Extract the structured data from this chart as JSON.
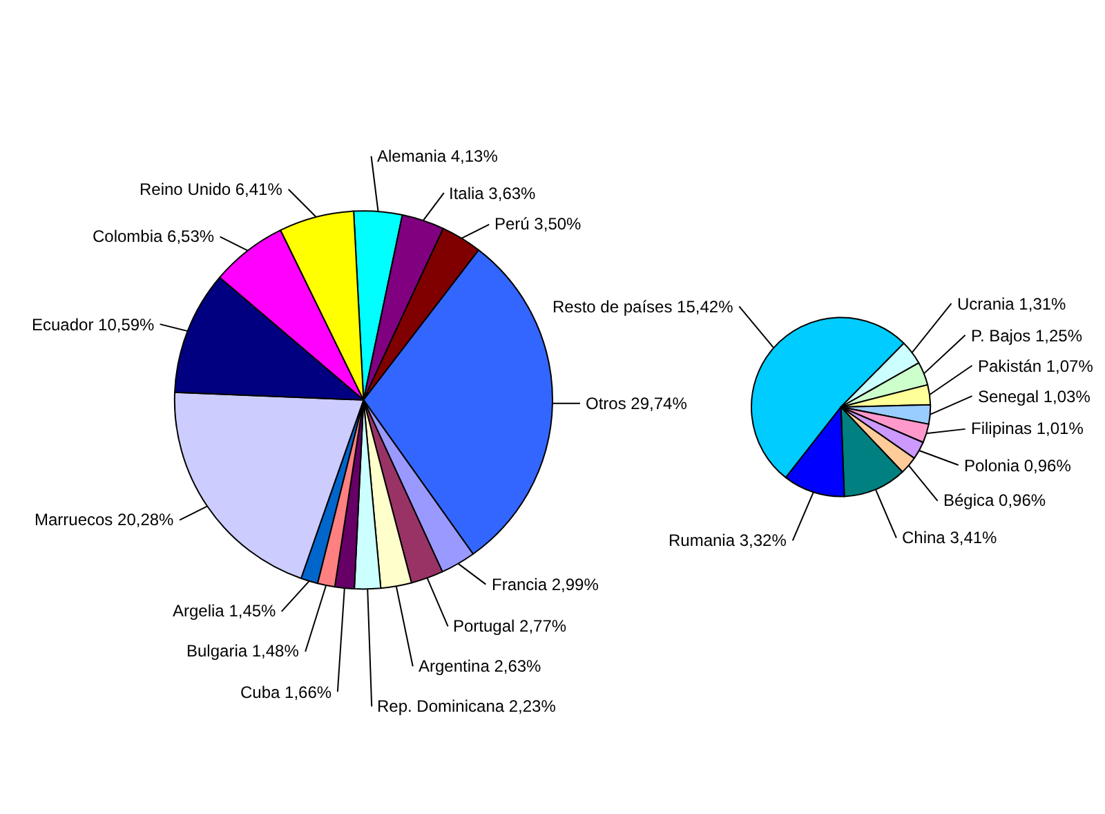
{
  "chart_data": [
    {
      "type": "pie",
      "categories": [
        "Alemania",
        "Italia",
        "Perú",
        "Otros",
        "Francia",
        "Portugal",
        "Argentina",
        "Rep. Dominicana",
        "Cuba",
        "Bulgaria",
        "Argelia",
        "Marruecos",
        "Ecuador",
        "Colombia",
        "Reino Unido"
      ],
      "values": [
        4.13,
        3.63,
        3.5,
        29.74,
        2.99,
        2.77,
        2.63,
        2.23,
        1.66,
        1.48,
        1.45,
        20.28,
        10.59,
        6.53,
        6.41
      ],
      "value_labels": [
        "4,13%",
        "3,63%",
        "3,50%",
        "29,74%",
        "2,99%",
        "2,77%",
        "2,63%",
        "2,23%",
        "1,66%",
        "1,48%",
        "1,45%",
        "20,28%",
        "10,59%",
        "6,53%",
        "6,41%"
      ],
      "colors": [
        "#00ffff",
        "#800080",
        "#800000",
        "#3366ff",
        "#9999ff",
        "#993366",
        "#ffffcc",
        "#ccffff",
        "#660066",
        "#ff8080",
        "#0066cc",
        "#ccccff",
        "#000080",
        "#ff00ff",
        "#ffff00"
      ],
      "legend": false
    },
    {
      "type": "pie",
      "categories": [
        "Resto de países",
        "Ucrania",
        "P. Bajos",
        "Pakistán",
        "Senegal",
        "Filipinas",
        "Polonia",
        "Bégica",
        "China",
        "Rumania"
      ],
      "values": [
        15.42,
        1.31,
        1.25,
        1.07,
        1.03,
        1.01,
        0.96,
        0.96,
        3.41,
        3.32
      ],
      "value_labels": [
        "15,42%",
        "1,31%",
        "1,25%",
        "1,07%",
        "1,03%",
        "1,01%",
        "0,96%",
        "0,96%",
        "3,41%",
        "3,32%"
      ],
      "colors": [
        "#00ccff",
        "#ccffff",
        "#ccffcc",
        "#ffff99",
        "#99ccff",
        "#ff99cc",
        "#cc99ff",
        "#ffcc99",
        "#008080",
        "#0000ff"
      ],
      "legend": false
    }
  ]
}
